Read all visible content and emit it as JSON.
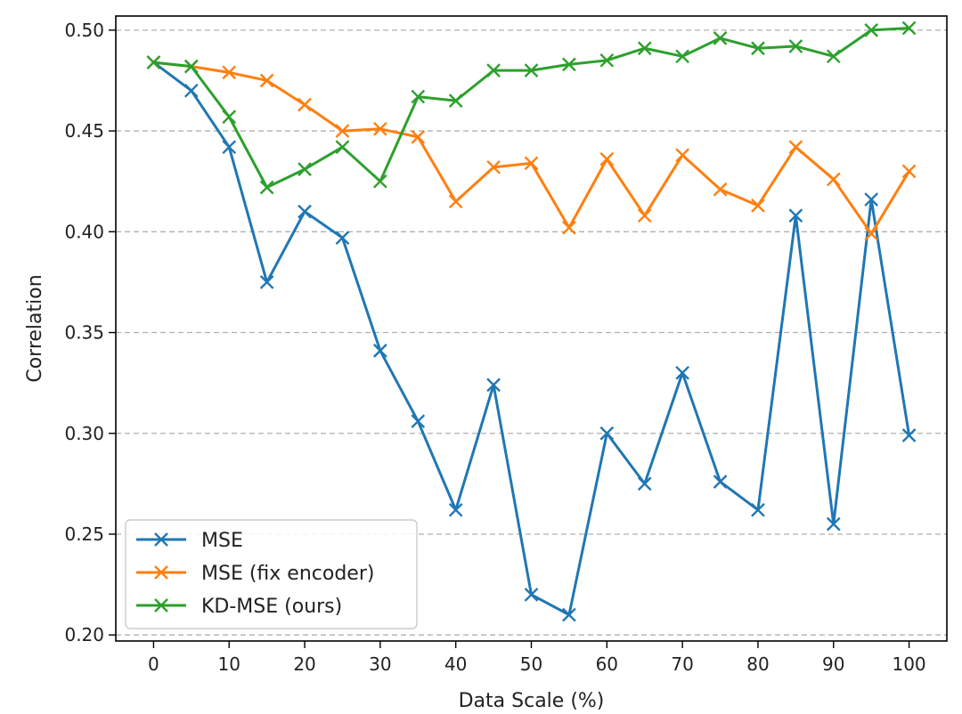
{
  "chart_data": {
    "type": "line",
    "title": "",
    "xlabel": "Data Scale (%)",
    "ylabel": "Correlation",
    "xlim": [
      -5,
      105
    ],
    "ylim": [
      0.197,
      0.507
    ],
    "xticks": [
      0,
      10,
      20,
      30,
      40,
      50,
      60,
      70,
      80,
      90,
      100
    ],
    "yticks": [
      0.2,
      0.25,
      0.3,
      0.35,
      0.4,
      0.45,
      0.5
    ],
    "ytick_labels": [
      "0.20",
      "0.25",
      "0.30",
      "0.35",
      "0.40",
      "0.45",
      "0.50"
    ],
    "grid": "horizontal-dashed",
    "legend_position": "lower-left",
    "x": [
      0,
      5,
      10,
      15,
      20,
      25,
      30,
      35,
      40,
      45,
      50,
      55,
      60,
      65,
      70,
      75,
      80,
      85,
      90,
      95,
      100
    ],
    "series": [
      {
        "name": "MSE",
        "color": "#1f77b4",
        "marker": "x",
        "values": [
          0.484,
          0.47,
          0.442,
          0.375,
          0.41,
          0.397,
          0.341,
          0.306,
          0.262,
          0.324,
          0.22,
          0.21,
          0.3,
          0.275,
          0.33,
          0.276,
          0.262,
          0.408,
          0.255,
          0.416,
          0.299
        ]
      },
      {
        "name": "MSE (fix encoder)",
        "color": "#ff7f0e",
        "marker": "x",
        "values": [
          0.484,
          0.482,
          0.479,
          0.475,
          0.463,
          0.45,
          0.451,
          0.447,
          0.415,
          0.432,
          0.434,
          0.402,
          0.436,
          0.408,
          0.438,
          0.421,
          0.413,
          0.442,
          0.426,
          0.399,
          0.43
        ]
      },
      {
        "name": "KD-MSE (ours)",
        "color": "#2ca02c",
        "marker": "x",
        "values": [
          0.484,
          0.482,
          0.457,
          0.422,
          0.431,
          0.442,
          0.425,
          0.467,
          0.465,
          0.48,
          0.48,
          0.483,
          0.485,
          0.491,
          0.487,
          0.496,
          0.491,
          0.492,
          0.487,
          0.5,
          0.501
        ]
      }
    ]
  }
}
